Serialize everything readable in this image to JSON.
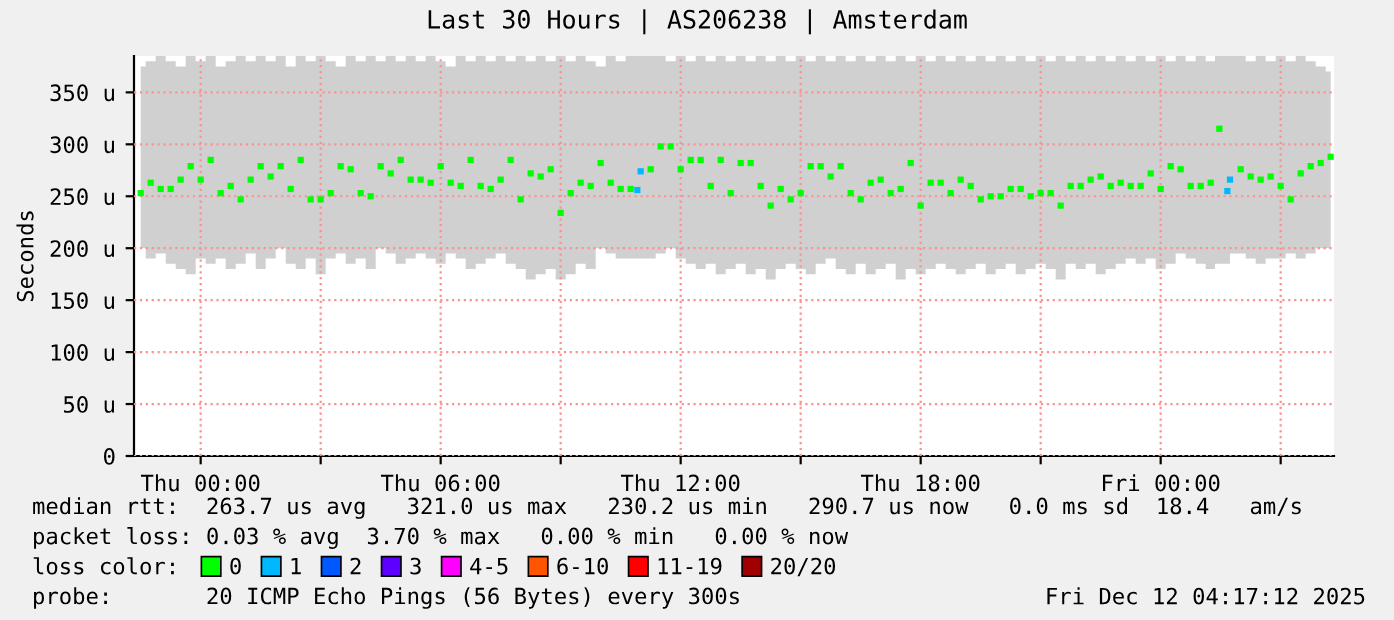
{
  "chart_data": {
    "type": "scatter",
    "title": "Last 30 Hours | AS206238 | Amsterdam",
    "ylabel": "Seconds",
    "xlim": [
      "2025-12-10T22:20",
      "2025-12-12T04:20"
    ],
    "ylim": [
      0,
      385
    ],
    "xticks": [
      {
        "value": "2025-12-11T00:00",
        "label": "Thu 00:00"
      },
      {
        "value": "2025-12-11T03:00",
        "label": null
      },
      {
        "value": "2025-12-11T06:00",
        "label": "Thu 06:00"
      },
      {
        "value": "2025-12-11T09:00",
        "label": null
      },
      {
        "value": "2025-12-11T12:00",
        "label": "Thu 12:00"
      },
      {
        "value": "2025-12-11T15:00",
        "label": null
      },
      {
        "value": "2025-12-11T18:00",
        "label": "Thu 18:00"
      },
      {
        "value": "2025-12-11T21:00",
        "label": null
      },
      {
        "value": "2025-12-12T00:00",
        "label": "Fri 00:00"
      },
      {
        "value": "2025-12-12T03:00",
        "label": null
      }
    ],
    "yticks": [
      0,
      {
        "value": 50,
        "label": "50 u"
      },
      {
        "value": 100,
        "label": "100 u"
      },
      {
        "value": 150,
        "label": "150 u"
      },
      {
        "value": 200,
        "label": "200 u"
      },
      {
        "value": 250,
        "label": "250 u"
      },
      {
        "value": 300,
        "label": "300 u"
      },
      {
        "value": 350,
        "label": "350 u"
      }
    ],
    "grid": true,
    "marker": "square",
    "legend": "bottom",
    "legend_title": "loss color:",
    "series": [
      {
        "name": "0",
        "color": "#00ff00",
        "x": [
          "2025-12-10T22:30",
          "2025-12-10T22:45",
          "2025-12-10T23:00",
          "2025-12-10T23:15",
          "2025-12-10T23:30",
          "2025-12-10T23:45",
          "2025-12-11T00:00",
          "2025-12-11T00:15",
          "2025-12-11T00:30",
          "2025-12-11T00:45",
          "2025-12-11T01:00",
          "2025-12-11T01:15",
          "2025-12-11T01:30",
          "2025-12-11T01:45",
          "2025-12-11T02:00",
          "2025-12-11T02:15",
          "2025-12-11T02:30",
          "2025-12-11T02:45",
          "2025-12-11T03:00",
          "2025-12-11T03:15",
          "2025-12-11T03:30",
          "2025-12-11T03:45",
          "2025-12-11T04:00",
          "2025-12-11T04:15",
          "2025-12-11T04:30",
          "2025-12-11T04:45",
          "2025-12-11T05:00",
          "2025-12-11T05:15",
          "2025-12-11T05:30",
          "2025-12-11T05:45",
          "2025-12-11T06:00",
          "2025-12-11T06:15",
          "2025-12-11T06:30",
          "2025-12-11T06:45",
          "2025-12-11T07:00",
          "2025-12-11T07:15",
          "2025-12-11T07:30",
          "2025-12-11T07:45",
          "2025-12-11T08:00",
          "2025-12-11T08:15",
          "2025-12-11T08:30",
          "2025-12-11T08:45",
          "2025-12-11T09:00",
          "2025-12-11T09:15",
          "2025-12-11T09:30",
          "2025-12-11T09:45",
          "2025-12-11T10:00",
          "2025-12-11T10:15",
          "2025-12-11T10:30",
          "2025-12-11T10:45",
          "2025-12-11T11:15",
          "2025-12-11T11:30",
          "2025-12-11T11:45",
          "2025-12-11T12:00",
          "2025-12-11T12:15",
          "2025-12-11T12:30",
          "2025-12-11T12:45",
          "2025-12-11T13:00",
          "2025-12-11T13:15",
          "2025-12-11T13:30",
          "2025-12-11T13:45",
          "2025-12-11T14:00",
          "2025-12-11T14:15",
          "2025-12-11T14:30",
          "2025-12-11T14:45",
          "2025-12-11T15:00",
          "2025-12-11T15:15",
          "2025-12-11T15:30",
          "2025-12-11T15:45",
          "2025-12-11T16:00",
          "2025-12-11T16:15",
          "2025-12-11T16:30",
          "2025-12-11T16:45",
          "2025-12-11T17:00",
          "2025-12-11T17:15",
          "2025-12-11T17:30",
          "2025-12-11T17:45",
          "2025-12-11T18:00",
          "2025-12-11T18:15",
          "2025-12-11T18:30",
          "2025-12-11T18:45",
          "2025-12-11T19:00",
          "2025-12-11T19:15",
          "2025-12-11T19:30",
          "2025-12-11T19:45",
          "2025-12-11T20:00",
          "2025-12-11T20:15",
          "2025-12-11T20:30",
          "2025-12-11T20:45",
          "2025-12-11T21:00",
          "2025-12-11T21:15",
          "2025-12-11T21:30",
          "2025-12-11T21:45",
          "2025-12-11T22:00",
          "2025-12-11T22:15",
          "2025-12-11T22:30",
          "2025-12-11T22:45",
          "2025-12-11T23:00",
          "2025-12-11T23:15",
          "2025-12-11T23:30",
          "2025-12-11T23:45",
          "2025-12-12T00:00",
          "2025-12-12T00:15",
          "2025-12-12T00:30",
          "2025-12-12T00:45",
          "2025-12-12T01:00",
          "2025-12-12T01:15",
          "2025-12-12T01:28",
          "2025-12-12T02:00",
          "2025-12-12T02:15",
          "2025-12-12T02:30",
          "2025-12-12T02:45",
          "2025-12-12T03:00",
          "2025-12-12T03:15",
          "2025-12-12T03:30",
          "2025-12-12T03:45",
          "2025-12-12T04:00",
          "2025-12-12T04:15"
        ],
        "values": [
          253,
          263,
          257,
          257,
          266,
          279,
          266,
          285,
          253,
          260,
          247,
          266,
          279,
          269,
          279,
          257,
          285,
          247,
          247,
          253,
          279,
          276,
          253,
          250,
          279,
          272,
          285,
          266,
          266,
          263,
          279,
          263,
          260,
          285,
          260,
          257,
          266,
          285,
          247,
          272,
          269,
          276,
          234,
          253,
          263,
          260,
          282,
          263,
          257,
          257,
          276,
          298,
          298,
          276,
          285,
          285,
          260,
          285,
          253,
          282,
          282,
          260,
          241,
          257,
          247,
          253,
          279,
          279,
          269,
          279,
          253,
          247,
          263,
          266,
          253,
          257,
          282,
          241,
          263,
          263,
          253,
          266,
          260,
          247,
          250,
          250,
          257,
          257,
          250,
          253,
          253,
          241,
          260,
          260,
          266,
          269,
          260,
          263,
          260,
          260,
          272,
          257,
          279,
          276,
          260,
          260,
          263,
          315,
          276,
          269,
          266,
          269,
          260,
          247,
          272,
          279,
          282,
          288
        ],
        "lower": [
          200,
          190,
          195,
          185,
          180,
          175,
          190,
          185,
          190,
          180,
          185,
          195,
          180,
          190,
          200,
          185,
          180,
          190,
          175,
          190,
          195,
          185,
          190,
          180,
          200,
          195,
          185,
          190,
          195,
          190,
          185,
          195,
          190,
          180,
          185,
          190,
          195,
          185,
          180,
          170,
          175,
          180,
          170,
          175,
          185,
          180,
          200,
          195,
          190,
          190,
          190,
          195,
          200,
          190,
          185,
          180,
          185,
          175,
          180,
          185,
          175,
          180,
          170,
          180,
          185,
          180,
          175,
          185,
          190,
          180,
          175,
          185,
          175,
          180,
          185,
          170,
          180,
          175,
          180,
          185,
          180,
          175,
          180,
          185,
          175,
          180,
          185,
          175,
          180,
          185,
          180,
          170,
          185,
          180,
          185,
          175,
          180,
          185,
          190,
          185,
          190,
          180,
          185,
          195,
          190,
          185,
          180,
          185,
          195,
          190,
          185,
          190,
          190,
          195,
          190,
          195,
          200,
          200
        ],
        "upper": [
          375,
          380,
          385,
          380,
          375,
          385,
          380,
          385,
          375,
          380,
          385,
          380,
          385,
          380,
          385,
          375,
          385,
          380,
          385,
          380,
          375,
          385,
          380,
          385,
          380,
          385,
          380,
          385,
          380,
          385,
          380,
          375,
          385,
          380,
          385,
          380,
          385,
          380,
          385,
          380,
          385,
          380,
          385,
          380,
          385,
          380,
          375,
          385,
          380,
          385,
          385,
          385,
          380,
          385,
          380,
          385,
          380,
          385,
          380,
          385,
          380,
          385,
          380,
          385,
          380,
          385,
          380,
          385,
          380,
          385,
          380,
          385,
          380,
          385,
          380,
          385,
          380,
          385,
          380,
          385,
          380,
          385,
          380,
          385,
          380,
          385,
          380,
          385,
          380,
          385,
          380,
          385,
          380,
          385,
          380,
          385,
          380,
          385,
          380,
          385,
          380,
          385,
          380,
          385,
          380,
          385,
          380,
          385,
          385,
          380,
          385,
          380,
          385,
          380,
          385,
          380,
          375,
          370
        ]
      },
      {
        "name": "1",
        "color": "#00b8ff",
        "x": [
          "2025-12-11T10:55",
          "2025-12-11T11:00",
          "2025-12-12T01:40",
          "2025-12-12T01:44"
        ],
        "values": [
          256,
          274,
          255,
          266
        ]
      },
      {
        "name": "2",
        "color": "#0059ff"
      },
      {
        "name": "3",
        "color": "#5e00ff"
      },
      {
        "name": "4-5",
        "color": "#ff00ff"
      },
      {
        "name": "6-10",
        "color": "#ff5500"
      },
      {
        "name": "11-19",
        "color": "#ff0000"
      },
      {
        "name": "20/20",
        "color": "#a10000"
      }
    ],
    "annotations": [
      "median rtt:  263.7 us avg   321.0 us max   230.2 us min   290.7 us now   0.0 ms sd  18.4   am/s",
      "packet loss: 0.03 % avg  3.70 % max   0.00 % min   0.00 % now",
      "probe:       20 ICMP Echo Pings (56 Bytes) every 300s",
      "Fri Dec 12 04:17:12 2025"
    ]
  }
}
